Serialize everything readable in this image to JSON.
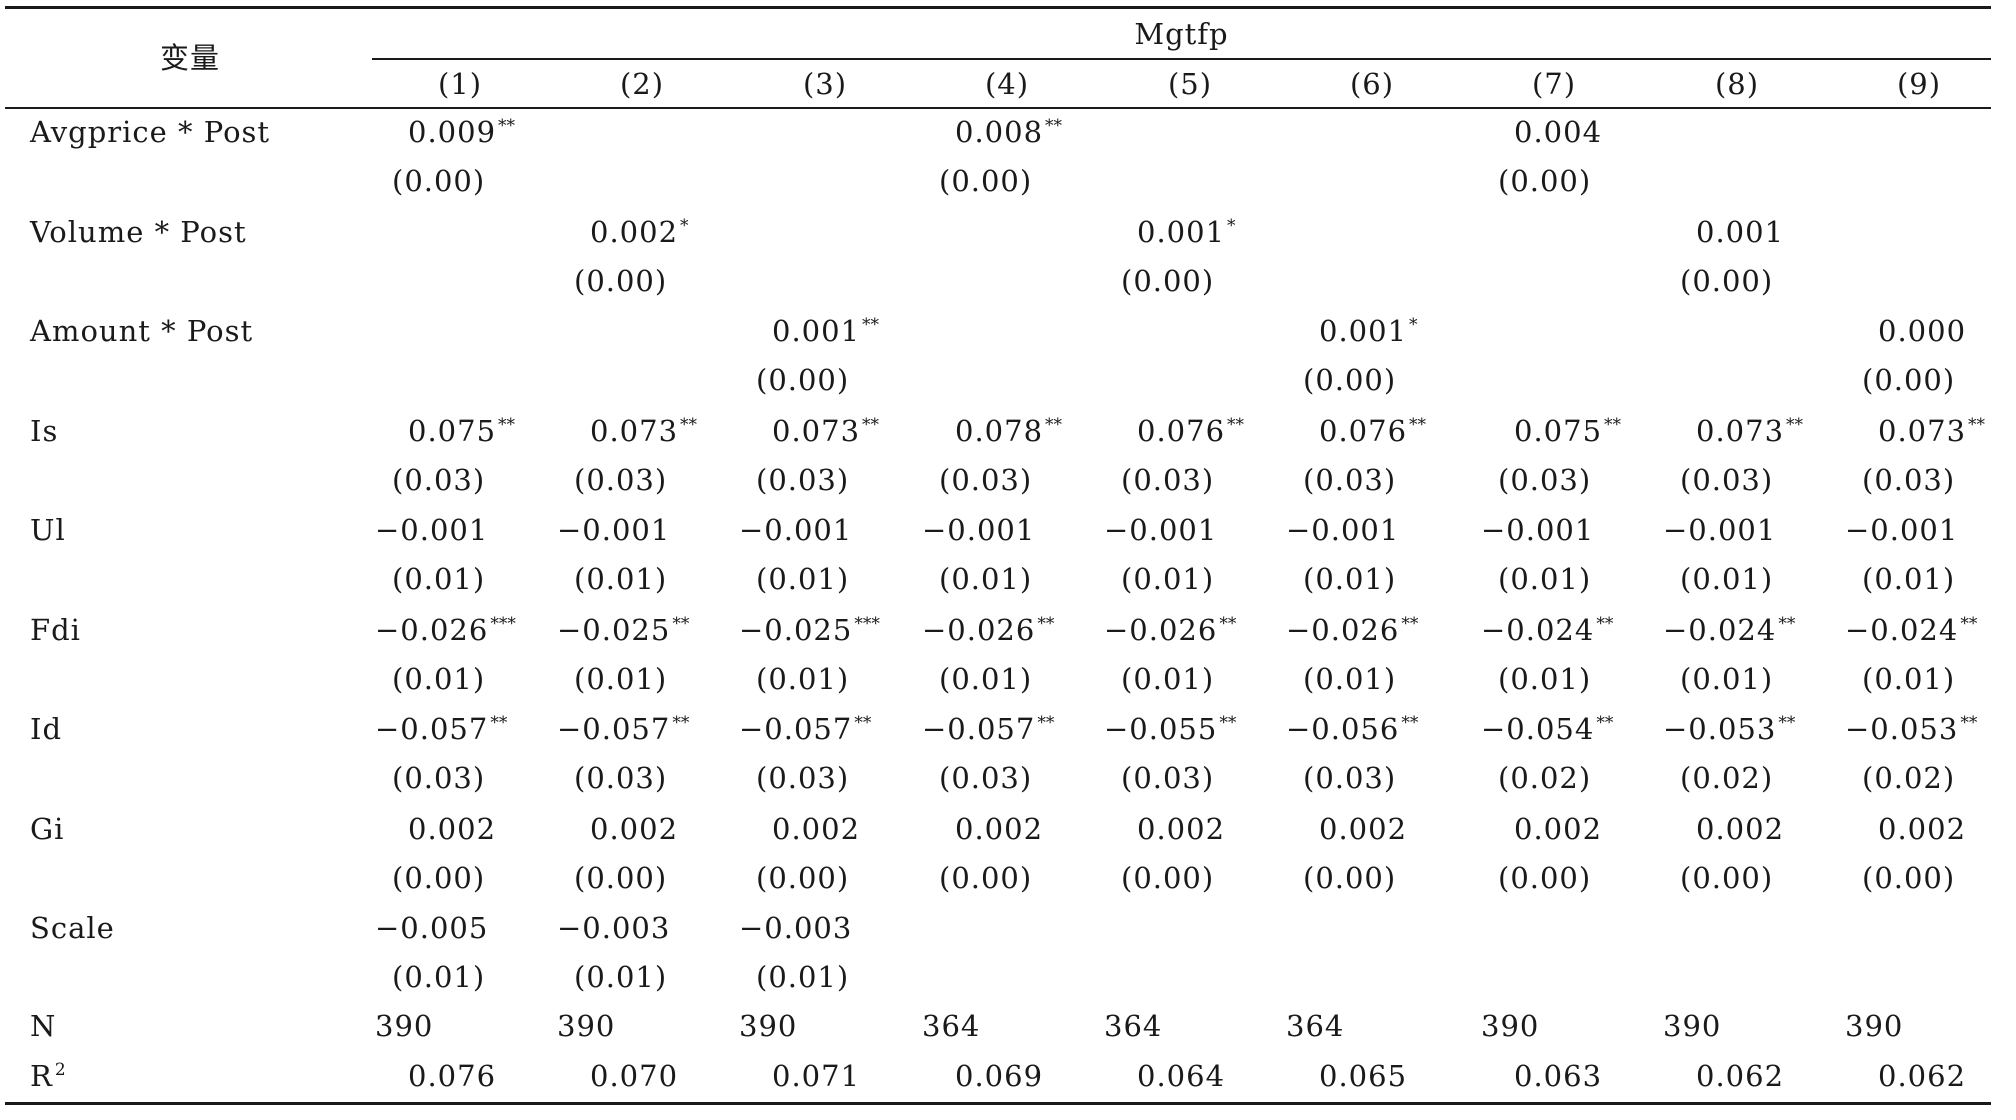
{
  "table": {
    "variable_header": "变量",
    "group_header": "Mgtfp",
    "columns": [
      "(1)",
      "(2)",
      "(3)",
      "(4)",
      "(5)",
      "(6)",
      "(7)",
      "(8)",
      "(9)"
    ],
    "rows": [
      {
        "name": "Avgprice * Post",
        "coef": [
          "0.009",
          "",
          "",
          "0.008",
          "",
          "",
          "0.004",
          "",
          ""
        ],
        "stars": [
          "**",
          "",
          "",
          "**",
          "",
          "",
          "",
          "",
          ""
        ],
        "se": [
          "(0.00)",
          "",
          "",
          "(0.00)",
          "",
          "",
          "(0.00)",
          "",
          ""
        ]
      },
      {
        "name": "Volume * Post",
        "coef": [
          "",
          "0.002",
          "",
          "",
          "0.001",
          "",
          "",
          "0.001",
          ""
        ],
        "stars": [
          "",
          "*",
          "",
          "",
          "*",
          "",
          "",
          "",
          ""
        ],
        "se": [
          "",
          "(0.00)",
          "",
          "",
          "(0.00)",
          "",
          "",
          "(0.00)",
          ""
        ]
      },
      {
        "name": "Amount * Post",
        "coef": [
          "",
          "",
          "0.001",
          "",
          "",
          "0.001",
          "",
          "",
          "0.000"
        ],
        "stars": [
          "",
          "",
          "**",
          "",
          "",
          "*",
          "",
          "",
          ""
        ],
        "se": [
          "",
          "",
          "(0.00)",
          "",
          "",
          "(0.00)",
          "",
          "",
          "(0.00)"
        ]
      },
      {
        "name": "Is",
        "coef": [
          "0.075",
          "0.073",
          "0.073",
          "0.078",
          "0.076",
          "0.076",
          "0.075",
          "0.073",
          "0.073"
        ],
        "stars": [
          "**",
          "**",
          "**",
          "**",
          "**",
          "**",
          "**",
          "**",
          "**"
        ],
        "se": [
          "(0.03)",
          "(0.03)",
          "(0.03)",
          "(0.03)",
          "(0.03)",
          "(0.03)",
          "(0.03)",
          "(0.03)",
          "(0.03)"
        ]
      },
      {
        "name": "Ul",
        "coef": [
          "−0.001",
          "−0.001",
          "−0.001",
          "−0.001",
          "−0.001",
          "−0.001",
          "−0.001",
          "−0.001",
          "−0.001"
        ],
        "stars": [
          "",
          "",
          "",
          "",
          "",
          "",
          "",
          "",
          ""
        ],
        "se": [
          "(0.01)",
          "(0.01)",
          "(0.01)",
          "(0.01)",
          "(0.01)",
          "(0.01)",
          "(0.01)",
          "(0.01)",
          "(0.01)"
        ]
      },
      {
        "name": "Fdi",
        "coef": [
          "−0.026",
          "−0.025",
          "−0.025",
          "−0.026",
          "−0.026",
          "−0.026",
          "−0.024",
          "−0.024",
          "−0.024"
        ],
        "stars": [
          "***",
          "**",
          "***",
          "**",
          "**",
          "**",
          "**",
          "**",
          "**"
        ],
        "se": [
          "(0.01)",
          "(0.01)",
          "(0.01)",
          "(0.01)",
          "(0.01)",
          "(0.01)",
          "(0.01)",
          "(0.01)",
          "(0.01)"
        ]
      },
      {
        "name": "Id",
        "coef": [
          "−0.057",
          "−0.057",
          "−0.057",
          "−0.057",
          "−0.055",
          "−0.056",
          "−0.054",
          "−0.053",
          "−0.053"
        ],
        "stars": [
          "**",
          "**",
          "**",
          "**",
          "**",
          "**",
          "**",
          "**",
          "**"
        ],
        "se": [
          "(0.03)",
          "(0.03)",
          "(0.03)",
          "(0.03)",
          "(0.03)",
          "(0.03)",
          "(0.02)",
          "(0.02)",
          "(0.02)"
        ]
      },
      {
        "name": "Gi",
        "coef": [
          "0.002",
          "0.002",
          "0.002",
          "0.002",
          "0.002",
          "0.002",
          "0.002",
          "0.002",
          "0.002"
        ],
        "stars": [
          "",
          "",
          "",
          "",
          "",
          "",
          "",
          "",
          ""
        ],
        "se": [
          "(0.00)",
          "(0.00)",
          "(0.00)",
          "(0.00)",
          "(0.00)",
          "(0.00)",
          "(0.00)",
          "(0.00)",
          "(0.00)"
        ]
      },
      {
        "name": "Scale",
        "coef": [
          "−0.005",
          "−0.003",
          "−0.003",
          "",
          "",
          "",
          "",
          "",
          ""
        ],
        "stars": [
          "",
          "",
          "",
          "",
          "",
          "",
          "",
          "",
          ""
        ],
        "se": [
          "(0.01)",
          "(0.01)",
          "(0.01)",
          "",
          "",
          "",
          "",
          "",
          ""
        ]
      }
    ],
    "n_row": {
      "name": "N",
      "values": [
        "390",
        "390",
        "390",
        "364",
        "364",
        "364",
        "390",
        "390",
        "390"
      ]
    },
    "r2_row": {
      "name": "R",
      "sup": "2",
      "values": [
        "0.076",
        "0.070",
        "0.071",
        "0.069",
        "0.064",
        "0.065",
        "0.063",
        "0.062",
        "0.062"
      ]
    }
  }
}
